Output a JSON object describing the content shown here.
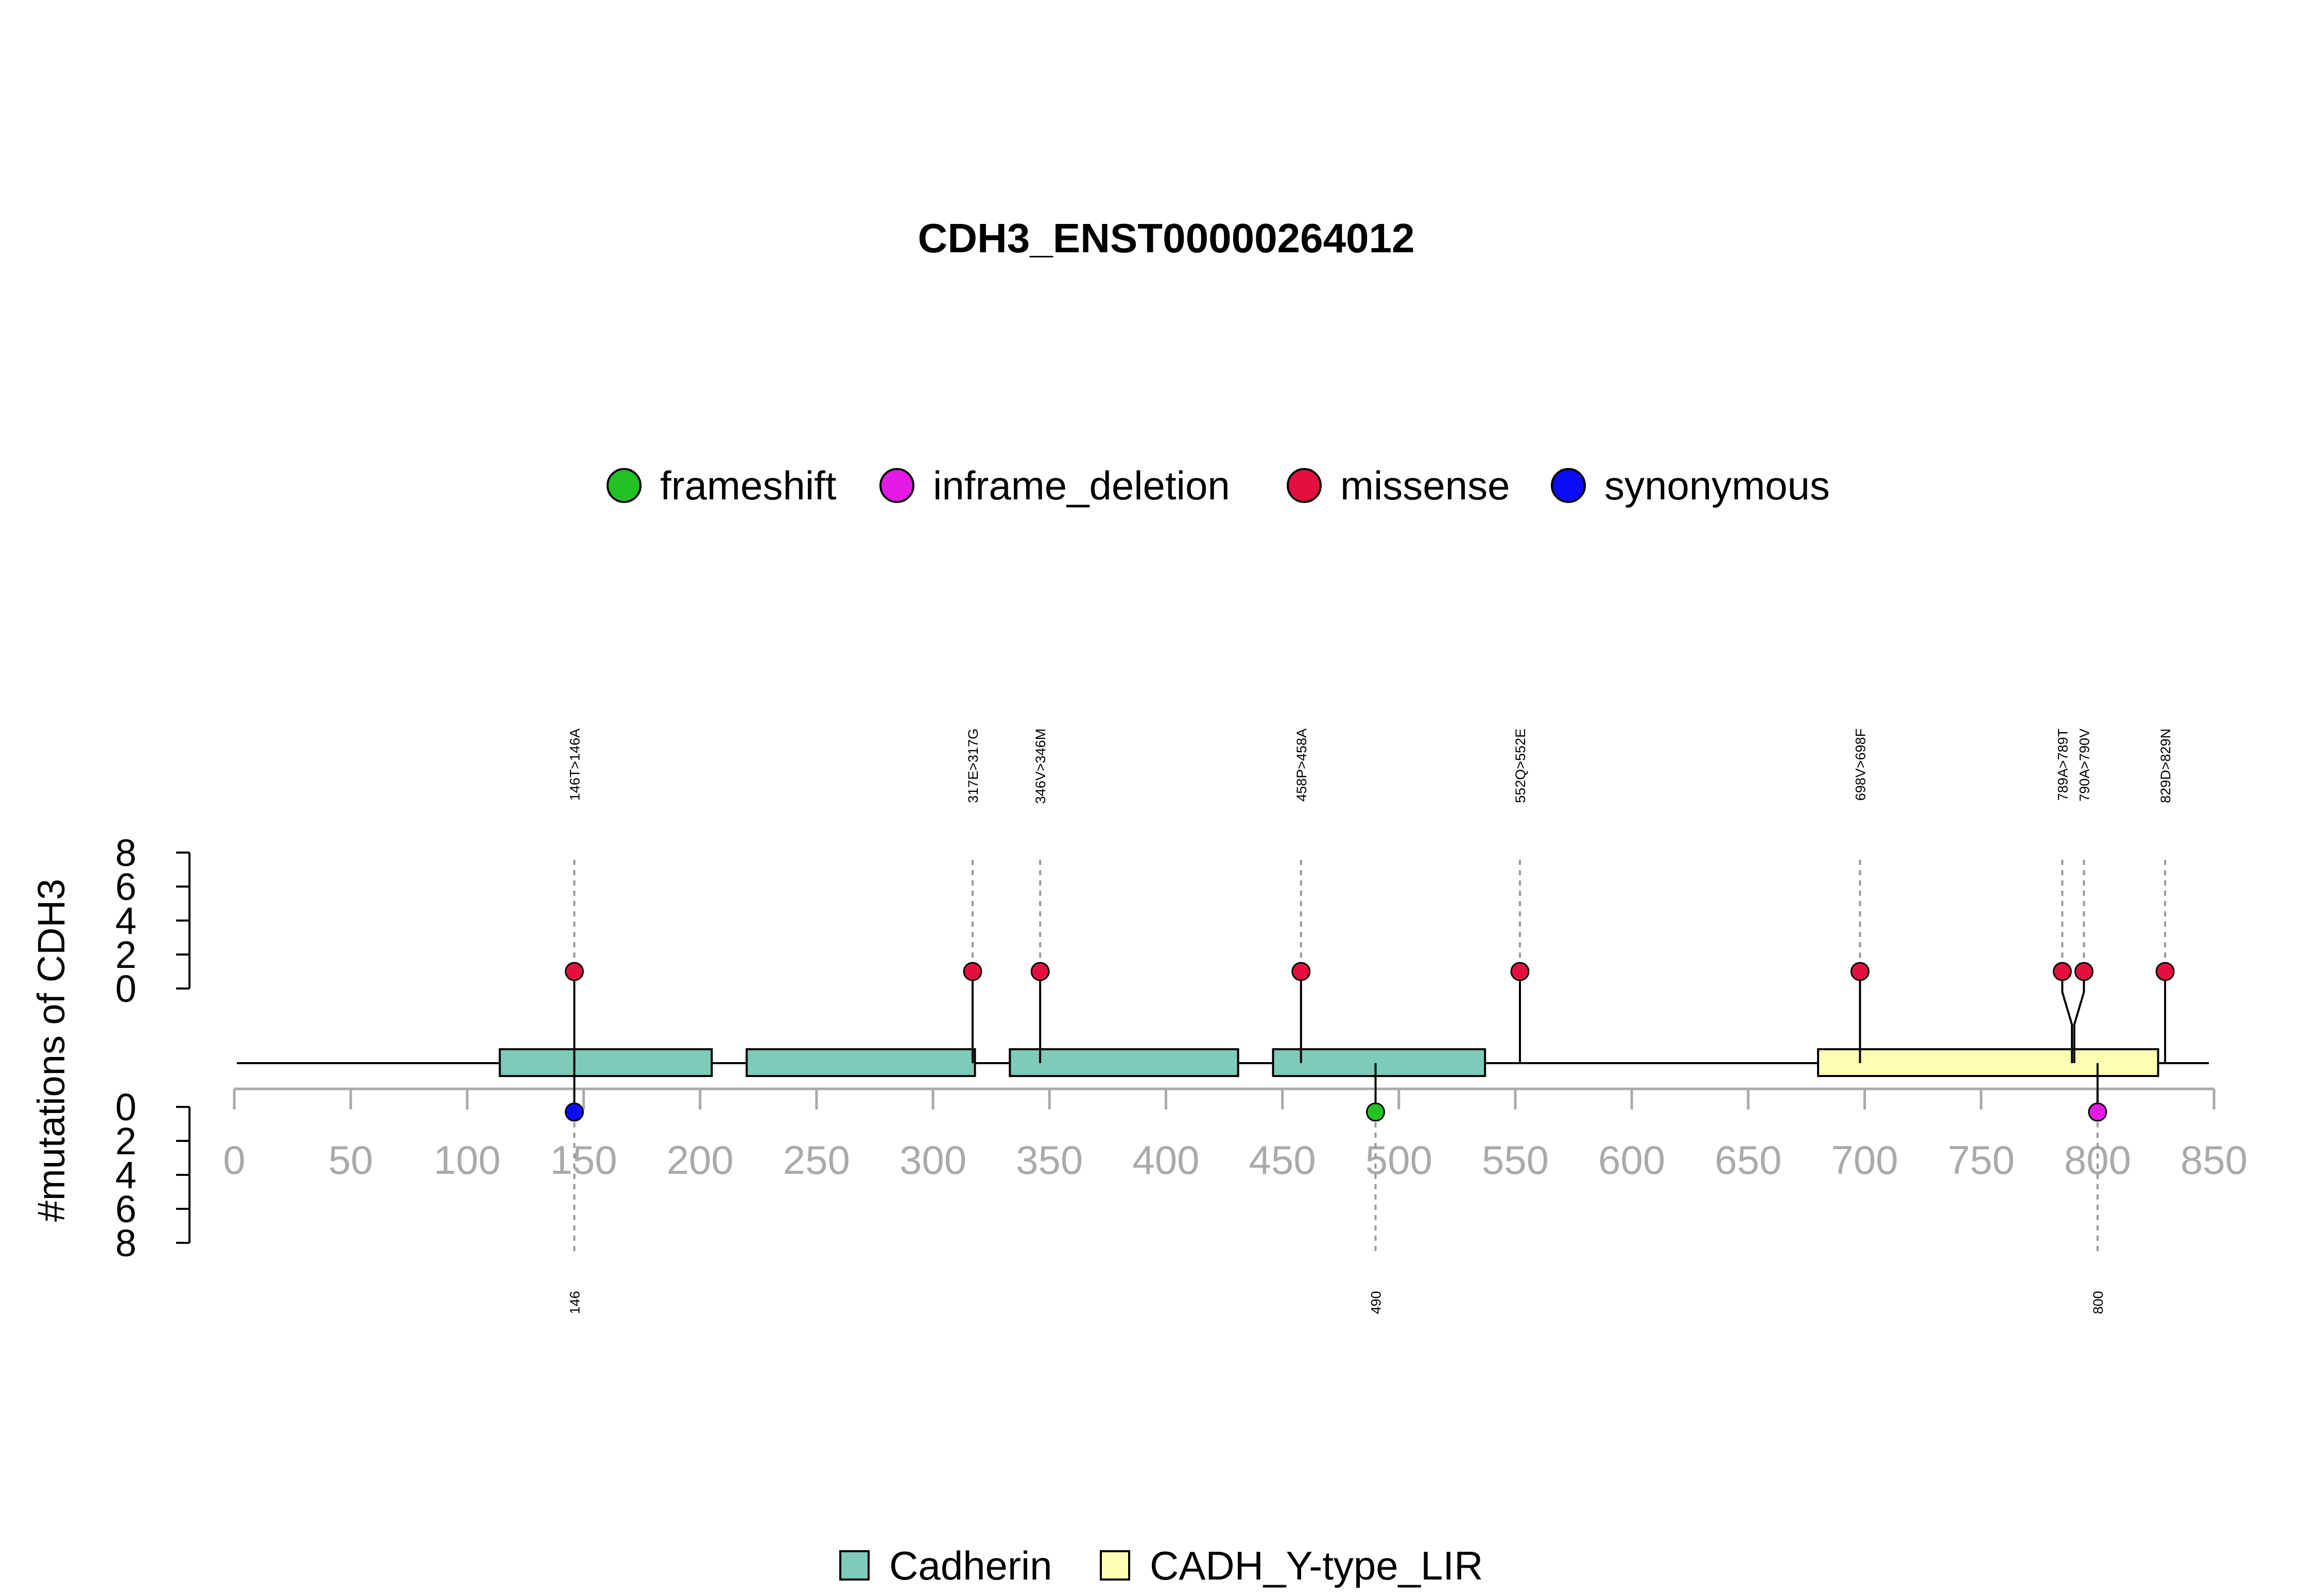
{
  "chart_data": {
    "type": "lollipop",
    "title": "CDH3_ENST00000264012",
    "ylabel": "#mutations of CDH3",
    "xlim": [
      0,
      850
    ],
    "x_ticks": [
      0,
      50,
      100,
      150,
      200,
      250,
      300,
      350,
      400,
      450,
      500,
      550,
      600,
      650,
      700,
      750,
      800,
      850
    ],
    "y_ticks": [
      0,
      2,
      4,
      6,
      8
    ],
    "ylim": [
      0,
      8
    ],
    "legend_mutation_types": [
      {
        "name": "frameshift",
        "color": "#22c222"
      },
      {
        "name": "inframe_deletion",
        "color": "#e619e6"
      },
      {
        "name": "missense",
        "color": "#e3103f"
      },
      {
        "name": "synonymous",
        "color": "#0b0bf5"
      }
    ],
    "legend_domains": [
      {
        "name": "Cadherin",
        "color": "#7fcbb9"
      },
      {
        "name": "CADH_Y-type_LIR",
        "color": "#ffffb3"
      }
    ],
    "domains": [
      {
        "name": "Cadherin",
        "start": 114,
        "end": 205
      },
      {
        "name": "Cadherin",
        "start": 220,
        "end": 318
      },
      {
        "name": "Cadherin",
        "start": 333,
        "end": 431
      },
      {
        "name": "Cadherin",
        "start": 446,
        "end": 537
      },
      {
        "name": "CADH_Y-type_LIR",
        "start": 680,
        "end": 826
      }
    ],
    "top_mutations": [
      {
        "pos": 146,
        "label": "146T>146A",
        "type": "missense",
        "count": 1
      },
      {
        "pos": 317,
        "label": "317E>317G",
        "type": "missense",
        "count": 1
      },
      {
        "pos": 346,
        "label": "346V>346M",
        "type": "missense",
        "count": 1
      },
      {
        "pos": 458,
        "label": "458P>458A",
        "type": "missense",
        "count": 1
      },
      {
        "pos": 552,
        "label": "552Q>552E",
        "type": "missense",
        "count": 1
      },
      {
        "pos": 698,
        "label": "698V>698F",
        "type": "missense",
        "count": 1
      },
      {
        "pos": 789,
        "label": "789A>789T",
        "type": "missense",
        "count": 1
      },
      {
        "pos": 790,
        "label": "790A>790V",
        "type": "missense",
        "count": 1
      },
      {
        "pos": 829,
        "label": "829D>829N",
        "type": "missense",
        "count": 1
      }
    ],
    "bottom_mutations": [
      {
        "pos": 146,
        "label": "146",
        "type": "synonymous",
        "count": 1
      },
      {
        "pos": 490,
        "label": "490",
        "type": "frameshift",
        "count": 1
      },
      {
        "pos": 800,
        "label": "800",
        "type": "inframe_deletion",
        "count": 1
      }
    ]
  }
}
